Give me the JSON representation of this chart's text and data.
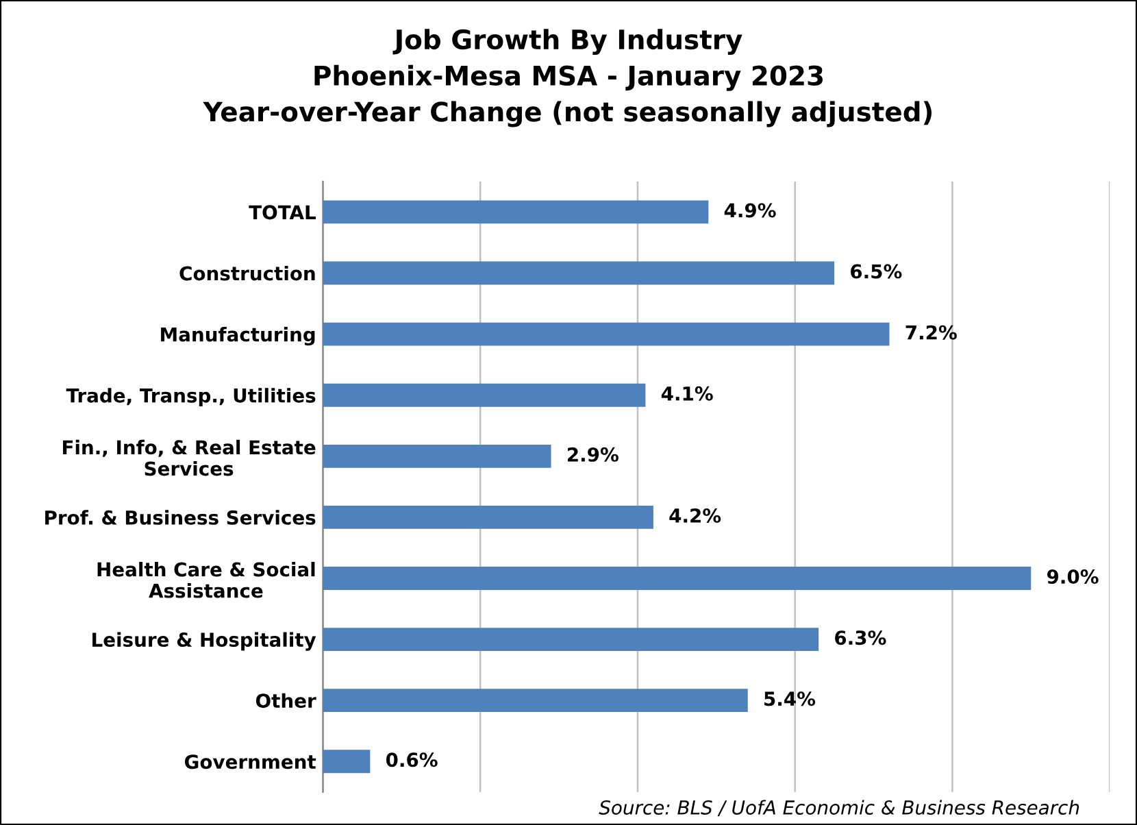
{
  "chart_data": {
    "type": "bar",
    "orientation": "horizontal",
    "title": "Job Growth By Industry\nPhoenix-Mesa MSA - January 2023\nYear-over-Year Change (not seasonally adjusted)",
    "categories": [
      "TOTAL",
      "Construction",
      "Manufacturing",
      "Trade, Transp., Utilities",
      "Fin., Info, & Real Estate\nServices",
      "Prof. & Business Services",
      "Health Care & Social\nAssistance",
      "Leisure & Hospitality",
      "Other",
      "Government"
    ],
    "values": [
      4.9,
      6.5,
      7.2,
      4.1,
      2.9,
      4.2,
      9.0,
      6.3,
      5.4,
      0.6
    ],
    "value_labels": [
      "4.9%",
      "6.5%",
      "7.2%",
      "4.1%",
      "2.9%",
      "4.2%",
      "9.0%",
      "6.3%",
      "5.4%",
      "0.6%"
    ],
    "color": "#4f81bd",
    "xlim": [
      0,
      10
    ],
    "xticks": [
      {
        "value": 0,
        "label": null
      },
      {
        "value": 2,
        "label": null
      },
      {
        "value": 4,
        "label": null
      },
      {
        "value": 6,
        "label": null
      },
      {
        "value": 8,
        "label": null
      },
      {
        "value": 10,
        "label": null
      }
    ],
    "grid": "x",
    "tick_labels": "y",
    "annotations": [
      "Source: BLS / UofA Economic & Business Research"
    ]
  }
}
